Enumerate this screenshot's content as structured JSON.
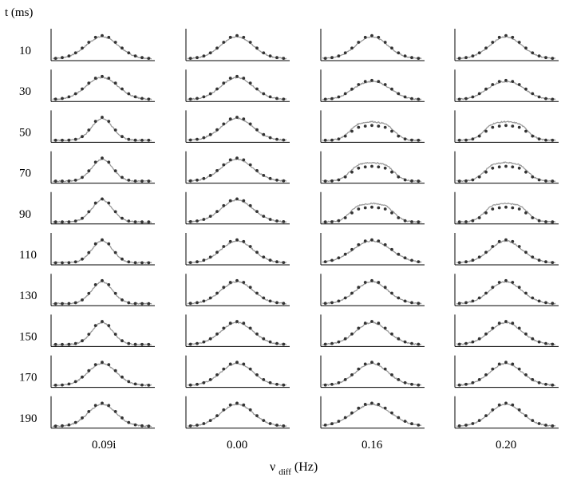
{
  "figure": {
    "y_header": "t (ms)",
    "x_title_main": "ν",
    "x_title_sub": "diff",
    "x_title_unit": " (Hz)"
  },
  "chart_data": {
    "type": "line",
    "layout": "small-multiples grid, 10 rows x 4 columns",
    "row_labels": [
      "10",
      "30",
      "50",
      "70",
      "90",
      "110",
      "130",
      "150",
      "170",
      "190"
    ],
    "column_labels": [
      "0.09i",
      "0.00",
      "0.16",
      "0.20"
    ],
    "row_axis_label": "t (ms)",
    "column_axis_label": "ν diff (Hz)",
    "series_styles": {
      "measured": {
        "kind": "line",
        "color": "#9a9a9a"
      },
      "model": {
        "kind": "dots",
        "color": "#333333"
      }
    },
    "profile_shape": {
      "0.09i": [
        "single",
        "single",
        "single peak, narrowing",
        "single peak, narrowing",
        "single peak, narrowing",
        "single peak, narrow",
        "single peak, narrow",
        "single peak, narrow",
        "single peak",
        "single peak"
      ],
      "0.00": [
        "single",
        "single",
        "single",
        "single",
        "single",
        "single",
        "single",
        "single",
        "single",
        "single"
      ],
      "0.16": [
        "single",
        "broad flat top",
        "double peak",
        "double peak",
        "double peak",
        "broad single",
        "single",
        "single",
        "single",
        "broad single"
      ],
      "0.20": [
        "single",
        "broad flat top",
        "double peak",
        "double peak",
        "double peak",
        "single",
        "single",
        "single",
        "single",
        "single"
      ]
    },
    "grid": false,
    "legend": "none"
  }
}
